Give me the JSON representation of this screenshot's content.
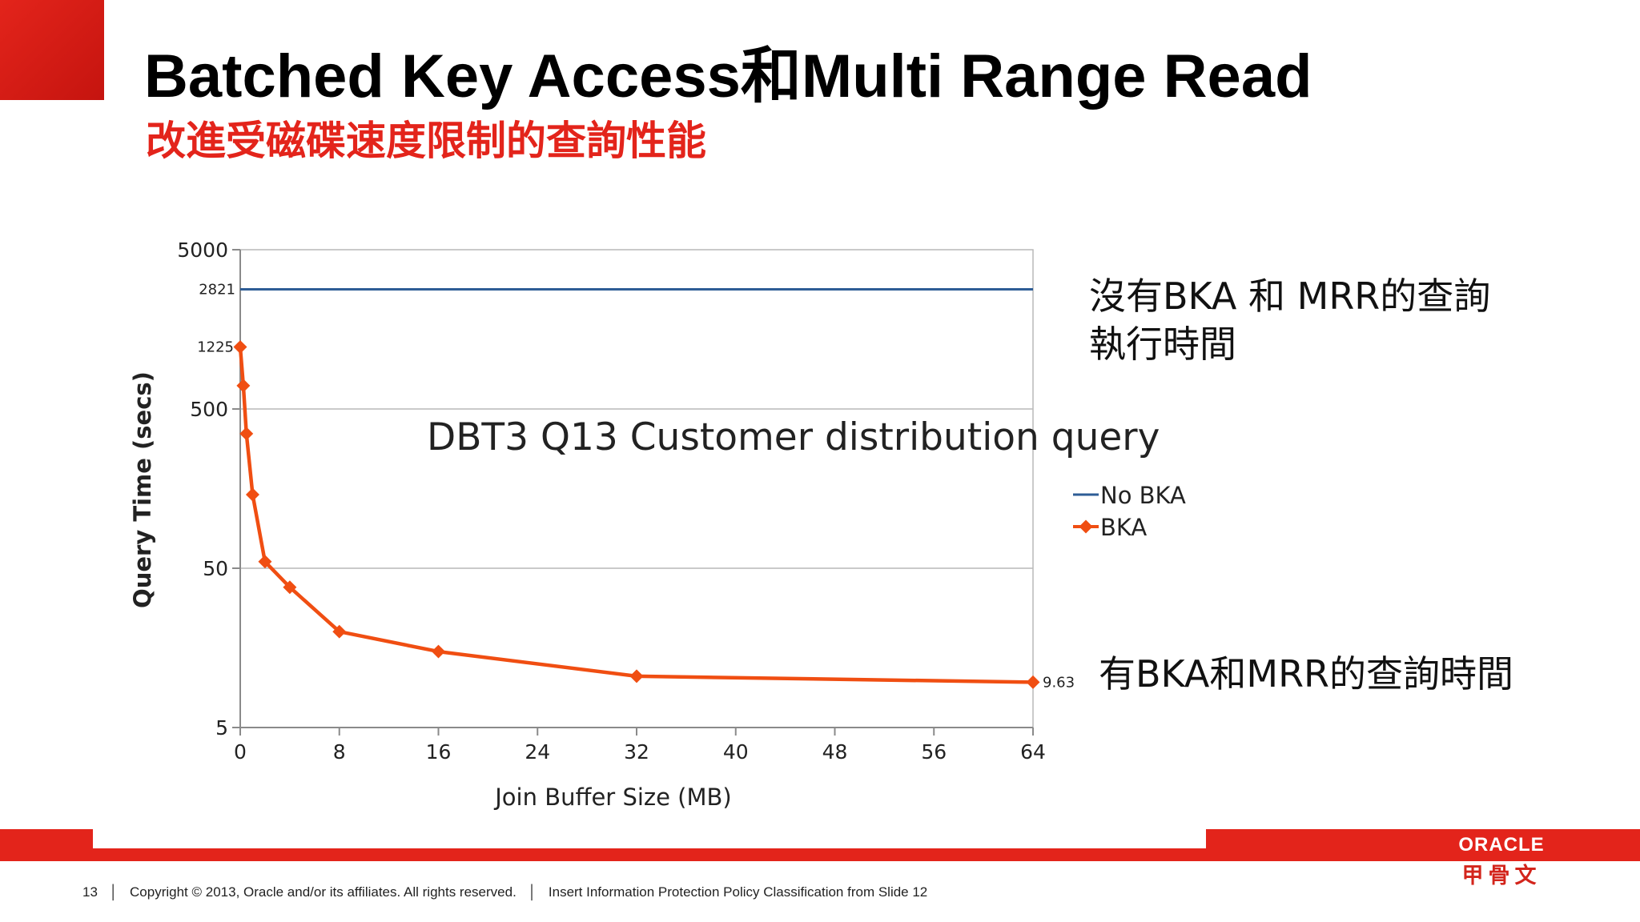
{
  "slide": {
    "title": "Batched Key Access和Multi Range Read",
    "subtitle": "改進受磁碟速度限制的查詢性能",
    "subtitle_color": "#e3241b",
    "accent_color": "#e3241b",
    "annotations": {
      "no_bka_line1": "沒有BKA 和 MRR的查詢",
      "no_bka_line2": "執行時間",
      "bka": "有BKA和MRR的查詢時間"
    }
  },
  "chart_data": {
    "type": "line",
    "title": "DBT3 Q13 Customer distribution query",
    "xlabel": "Join Buffer Size (MB)",
    "ylabel": "Query Time (secs)",
    "x_ticks": [
      0,
      8,
      16,
      24,
      32,
      40,
      48,
      56,
      64
    ],
    "xlim": [
      0,
      64
    ],
    "y_scale": "log",
    "ylim": [
      5,
      5000
    ],
    "y_ticks": [
      5,
      50,
      500,
      5000
    ],
    "grid": "horizontal",
    "legend_position": "right",
    "series": [
      {
        "name": "No BKA",
        "color": "#2e5d96",
        "marker": "none",
        "x": [
          0,
          64
        ],
        "y": [
          2821,
          2821
        ],
        "label_value": "2821"
      },
      {
        "name": "BKA",
        "color": "#f04e12",
        "marker": "diamond",
        "x": [
          0,
          0.25,
          0.5,
          1,
          2,
          4,
          8,
          16,
          32,
          64
        ],
        "y": [
          1225,
          700,
          350,
          145,
          55,
          38,
          20,
          15,
          10.5,
          9.63
        ],
        "label_first": "1225",
        "label_last": "9.63"
      }
    ]
  },
  "footer": {
    "page_number": "13",
    "copyright": "Copyright © 2013, Oracle and/or its affiliates. All rights reserved.",
    "classification": "Insert Information Protection Policy Classification from Slide 12",
    "brand_name": "ORACLE",
    "brand_cn": "甲骨文"
  }
}
